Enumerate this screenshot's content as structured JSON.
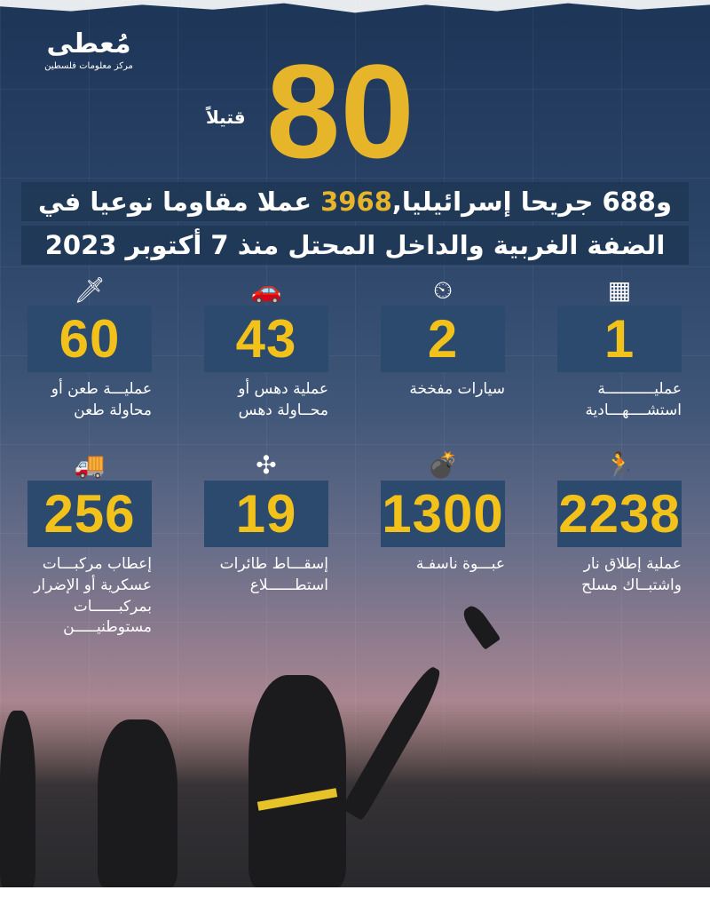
{
  "logo": {
    "name": "مُعطى",
    "subtitle": "مركز معلومات فلسطين"
  },
  "headline": {
    "killed_number": "80",
    "killed_label": "قتيلاً",
    "line1_prefix": "و688 جريحا إسرائيليا,",
    "line1_highlight": "3968",
    "line1_suffix": " عملا مقاوما نوعيا في",
    "line2": "الضفة الغربية والداخل المحتل منذ 7 أكتوبر 2023"
  },
  "colors": {
    "accent": "#f2c21b",
    "card": "#2b4a6e"
  },
  "stats_row1": [
    {
      "icon": "suicide-vest-icon",
      "value": "1",
      "label": "عمليـــــــــــة استشــــهـــادية"
    },
    {
      "icon": "car-bomb-icon",
      "value": "2",
      "label": "سيارات مفخخة"
    },
    {
      "icon": "ramming-car-icon",
      "value": "43",
      "label": "عملية دهس أو محــاولة دهس"
    },
    {
      "icon": "knife-icon",
      "value": "60",
      "label": "عمليـــة طعن أو محاولة طعن"
    }
  ],
  "stats_row2": [
    {
      "icon": "gunman-icon",
      "value": "2238",
      "label": "عملية إطلاق نار واشتبــاك مسلح"
    },
    {
      "icon": "bomb-icon",
      "value": "1300",
      "label": "عبـــوة ناسفـة"
    },
    {
      "icon": "drone-icon",
      "value": "19",
      "label": "إسقـــاط طائرات استطــــــلاع"
    },
    {
      "icon": "burning-truck-icon",
      "value": "256",
      "label": "إعطاب مركبـــات عسكرية أو الإضرار بمركبــــــات مستوطنيـــــن"
    }
  ]
}
